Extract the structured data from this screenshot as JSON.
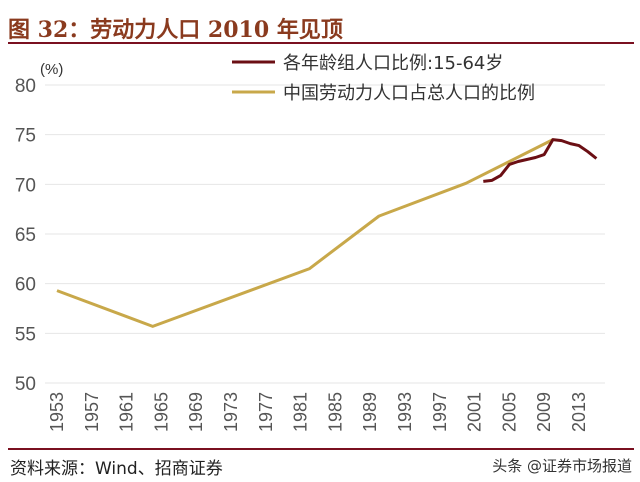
{
  "title": "图 32：劳动力人口 2010 年见顶",
  "source": "资料来源：Wind、招商证券",
  "watermark": "头条 @证券市场报道",
  "chart_data": {
    "type": "line",
    "ylabel": "(%)",
    "ylim": [
      50,
      80
    ],
    "yticks": [
      50,
      55,
      60,
      65,
      70,
      75,
      80
    ],
    "xlim": [
      1953,
      2015
    ],
    "xticks": [
      "1953",
      "1957",
      "1961",
      "1965",
      "1969",
      "1973",
      "1977",
      "1981",
      "1985",
      "1989",
      "1993",
      "1997",
      "2001",
      "2005",
      "2009",
      "2013"
    ],
    "grid": true,
    "legend_position": "top-right",
    "series": [
      {
        "name": "各年龄组人口比例:15-64岁",
        "color": "#6b0f14",
        "x": [
          2002,
          2003,
          2004,
          2005,
          2006,
          2007,
          2008,
          2009,
          2010,
          2011,
          2012,
          2013,
          2014,
          2015
        ],
        "y": [
          70.3,
          70.4,
          70.9,
          72.0,
          72.3,
          72.5,
          72.7,
          73.0,
          74.5,
          74.4,
          74.1,
          73.9,
          73.3,
          72.6
        ]
      },
      {
        "name": "中国劳动力人口占总人口的比例",
        "color": "#c8a84a",
        "x": [
          1953,
          1964,
          1982,
          1990,
          2000,
          2010
        ],
        "y": [
          59.3,
          55.7,
          61.5,
          66.8,
          70.1,
          74.5
        ]
      }
    ]
  }
}
